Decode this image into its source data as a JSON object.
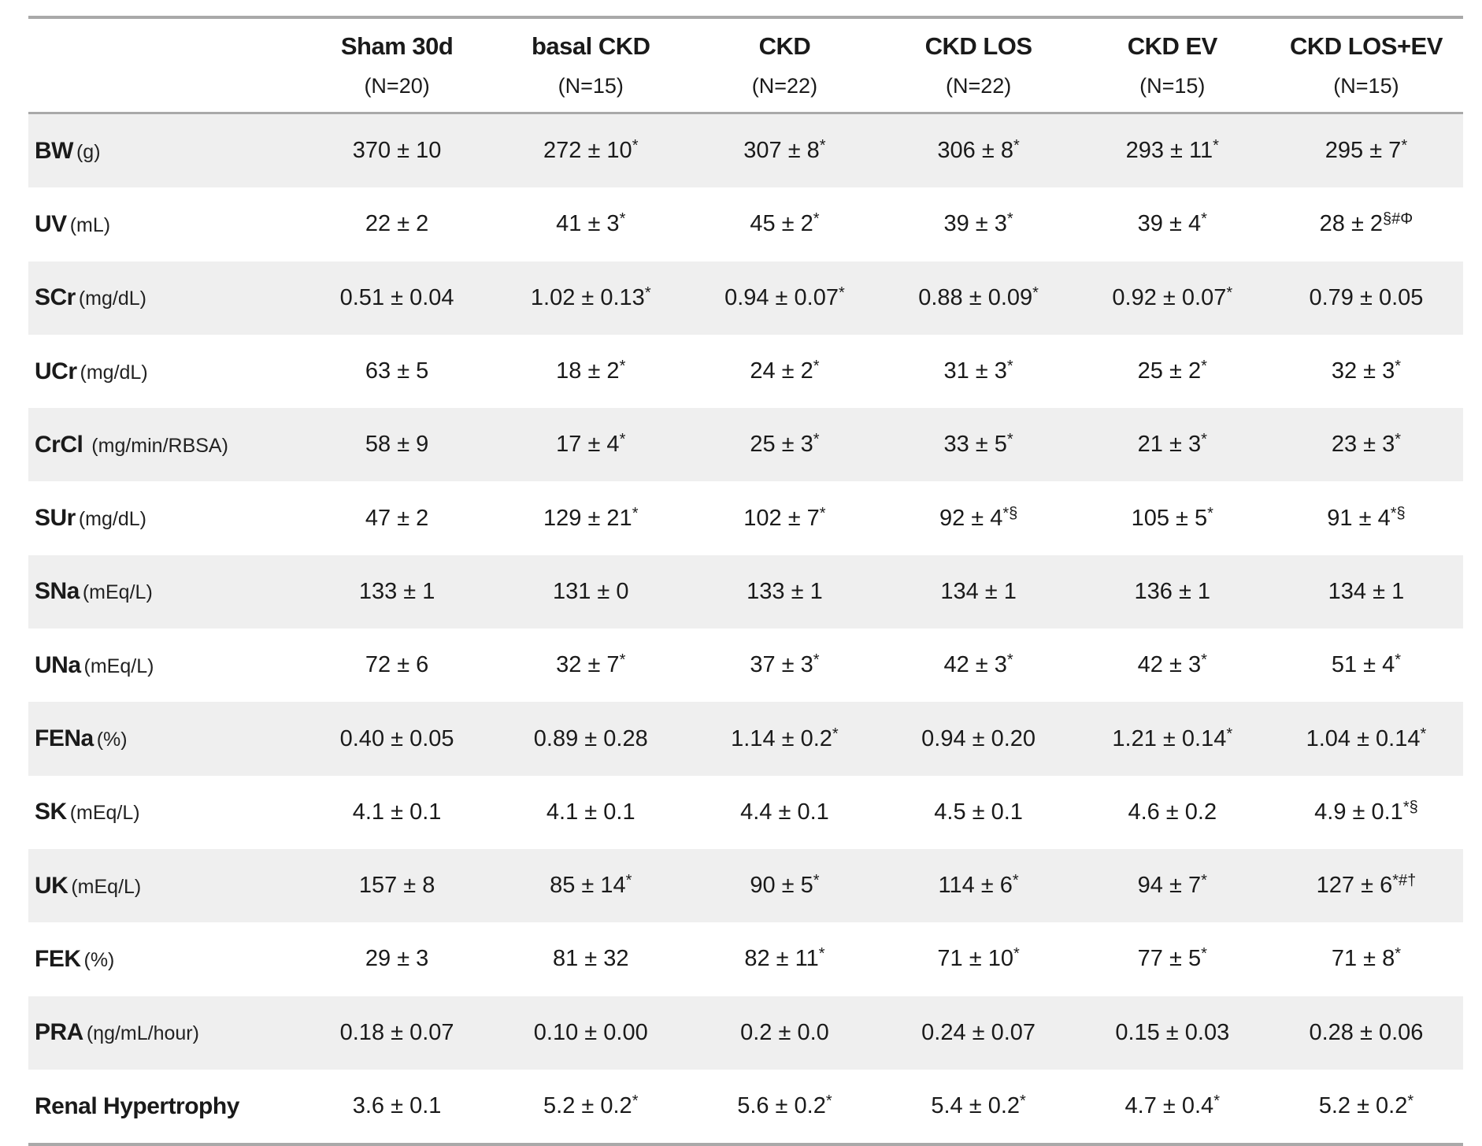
{
  "colors": {
    "row_shade": "#efefef",
    "border": "#a9a9a9",
    "text": "#1a1a1a",
    "background": "#ffffff"
  },
  "table": {
    "columns": [
      {
        "name": "Sham 30d",
        "n": "(N=20)"
      },
      {
        "name": "basal CKD",
        "n": "(N=15)"
      },
      {
        "name": "CKD",
        "n": "(N=22)"
      },
      {
        "name": "CKD LOS",
        "n": "(N=22)"
      },
      {
        "name": "CKD EV",
        "n": "(N=15)"
      },
      {
        "name": "CKD LOS+EV",
        "n": "(N=15)"
      }
    ],
    "rows": [
      {
        "label": "BW",
        "unit": "(g)",
        "shaded": true,
        "values": [
          {
            "v": "370 ± 10",
            "s": ""
          },
          {
            "v": "272 ± 10",
            "s": "*"
          },
          {
            "v": "307 ± 8",
            "s": "*"
          },
          {
            "v": "306 ± 8",
            "s": "*"
          },
          {
            "v": "293 ± 11",
            "s": "*"
          },
          {
            "v": "295 ± 7",
            "s": "*"
          }
        ]
      },
      {
        "label": "UV",
        "unit": "(mL)",
        "shaded": false,
        "values": [
          {
            "v": "22 ± 2",
            "s": ""
          },
          {
            "v": "41 ± 3",
            "s": "*"
          },
          {
            "v": "45 ± 2",
            "s": "*"
          },
          {
            "v": "39 ± 3",
            "s": "*"
          },
          {
            "v": "39 ± 4",
            "s": "*"
          },
          {
            "v": "28 ± 2",
            "s": "§#Φ"
          }
        ]
      },
      {
        "label": "SCr",
        "unit": "(mg/dL)",
        "shaded": true,
        "values": [
          {
            "v": "0.51 ± 0.04",
            "s": ""
          },
          {
            "v": "1.02 ± 0.13",
            "s": "*"
          },
          {
            "v": "0.94 ± 0.07",
            "s": "*"
          },
          {
            "v": "0.88 ± 0.09",
            "s": "*"
          },
          {
            "v": "0.92 ± 0.07",
            "s": "*"
          },
          {
            "v": "0.79 ± 0.05",
            "s": ""
          }
        ]
      },
      {
        "label": "UCr",
        "unit": "(mg/dL)",
        "shaded": false,
        "values": [
          {
            "v": "63 ± 5",
            "s": ""
          },
          {
            "v": "18 ± 2",
            "s": "*"
          },
          {
            "v": "24 ± 2",
            "s": "*"
          },
          {
            "v": "31 ± 3",
            "s": "*"
          },
          {
            "v": "25 ± 2",
            "s": "*"
          },
          {
            "v": "32 ± 3",
            "s": "*"
          }
        ]
      },
      {
        "label": "CrCl",
        "unit": " (mg/min/RBSA)",
        "shaded": true,
        "values": [
          {
            "v": "58 ± 9",
            "s": ""
          },
          {
            "v": "17 ± 4",
            "s": "*"
          },
          {
            "v": "25 ± 3",
            "s": "*"
          },
          {
            "v": "33 ± 5",
            "s": "*"
          },
          {
            "v": "21 ± 3",
            "s": "*"
          },
          {
            "v": "23 ± 3",
            "s": "*"
          }
        ]
      },
      {
        "label": "SUr",
        "unit": "(mg/dL)",
        "shaded": false,
        "values": [
          {
            "v": "47 ± 2",
            "s": ""
          },
          {
            "v": "129 ± 21",
            "s": "*"
          },
          {
            "v": "102 ± 7",
            "s": "*"
          },
          {
            "v": "92 ± 4",
            "s": "*§"
          },
          {
            "v": "105 ± 5",
            "s": "*"
          },
          {
            "v": "91 ± 4",
            "s": "*§"
          }
        ]
      },
      {
        "label": "SNa",
        "unit": "(mEq/L)",
        "shaded": true,
        "values": [
          {
            "v": "133 ± 1",
            "s": ""
          },
          {
            "v": "131 ± 0",
            "s": ""
          },
          {
            "v": "133 ± 1",
            "s": ""
          },
          {
            "v": "134 ± 1",
            "s": ""
          },
          {
            "v": "136 ± 1",
            "s": ""
          },
          {
            "v": "134 ± 1",
            "s": ""
          }
        ]
      },
      {
        "label": "UNa",
        "unit": "(mEq/L)",
        "shaded": false,
        "values": [
          {
            "v": "72 ± 6",
            "s": ""
          },
          {
            "v": "32 ± 7",
            "s": "*"
          },
          {
            "v": "37 ± 3",
            "s": "*"
          },
          {
            "v": "42 ± 3",
            "s": "*"
          },
          {
            "v": "42 ± 3",
            "s": "*"
          },
          {
            "v": "51 ± 4",
            "s": "*"
          }
        ]
      },
      {
        "label": "FENa",
        "unit": "(%)",
        "shaded": true,
        "values": [
          {
            "v": "0.40 ± 0.05",
            "s": ""
          },
          {
            "v": "0.89 ± 0.28",
            "s": ""
          },
          {
            "v": "1.14 ± 0.2",
            "s": "*"
          },
          {
            "v": "0.94 ± 0.20",
            "s": ""
          },
          {
            "v": "1.21 ± 0.14",
            "s": "*"
          },
          {
            "v": "1.04 ± 0.14",
            "s": "*"
          }
        ]
      },
      {
        "label": "SK",
        "unit": "(mEq/L)",
        "shaded": false,
        "values": [
          {
            "v": "4.1 ± 0.1",
            "s": ""
          },
          {
            "v": "4.1 ± 0.1",
            "s": ""
          },
          {
            "v": "4.4 ± 0.1",
            "s": ""
          },
          {
            "v": "4.5 ± 0.1",
            "s": ""
          },
          {
            "v": "4.6 ± 0.2",
            "s": ""
          },
          {
            "v": "4.9 ± 0.1",
            "s": "*§"
          }
        ]
      },
      {
        "label": "UK",
        "unit": "(mEq/L)",
        "shaded": true,
        "values": [
          {
            "v": "157 ± 8",
            "s": ""
          },
          {
            "v": "85 ± 14",
            "s": "*"
          },
          {
            "v": "90 ± 5",
            "s": "*"
          },
          {
            "v": "114 ± 6",
            "s": "*"
          },
          {
            "v": "94 ± 7",
            "s": "*"
          },
          {
            "v": "127 ± 6",
            "s": "*#†"
          }
        ]
      },
      {
        "label": "FEK",
        "unit": "(%)",
        "shaded": false,
        "values": [
          {
            "v": "29 ± 3",
            "s": ""
          },
          {
            "v": "81 ± 32",
            "s": ""
          },
          {
            "v": "82 ± 11",
            "s": "*"
          },
          {
            "v": "71 ± 10",
            "s": "*"
          },
          {
            "v": "77 ± 5",
            "s": "*"
          },
          {
            "v": "71 ± 8",
            "s": "*"
          }
        ]
      },
      {
        "label": "PRA",
        "unit": "(ηg/mL/hour)",
        "shaded": true,
        "values": [
          {
            "v": "0.18 ± 0.07",
            "s": ""
          },
          {
            "v": "0.10 ± 0.00",
            "s": ""
          },
          {
            "v": "0.2 ± 0.0",
            "s": ""
          },
          {
            "v": "0.24 ± 0.07",
            "s": ""
          },
          {
            "v": "0.15 ± 0.03",
            "s": ""
          },
          {
            "v": "0.28 ± 0.06",
            "s": ""
          }
        ]
      },
      {
        "label": "Renal Hypertrophy",
        "unit": "",
        "shaded": false,
        "values": [
          {
            "v": "3.6 ± 0.1",
            "s": ""
          },
          {
            "v": "5.2 ± 0.2",
            "s": "*"
          },
          {
            "v": "5.6 ± 0.2",
            "s": "*"
          },
          {
            "v": "5.4 ± 0.2",
            "s": "*"
          },
          {
            "v": "4.7 ± 0.4",
            "s": "*"
          },
          {
            "v": "5.2 ± 0.2",
            "s": "*"
          }
        ]
      }
    ]
  }
}
